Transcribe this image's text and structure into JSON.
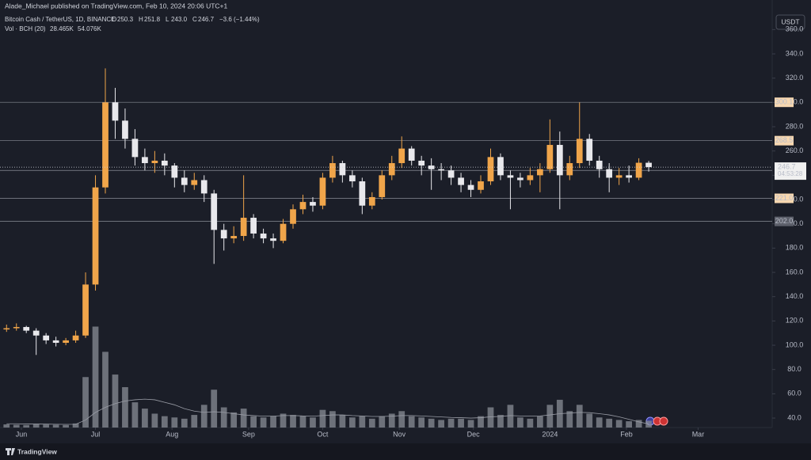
{
  "chart_data": {
    "type": "candlestick",
    "publisher": "Alade_Michael published on TradingView.com, Feb 10, 2024 20:06 UTC+1",
    "symbol": "Bitcoin Cash / TetherUS, 1D, BINANCE",
    "ohlc": [
      {
        "label": "O",
        "value": "250.3"
      },
      {
        "label": "H",
        "value": "251.8"
      },
      {
        "label": "L",
        "value": "243.0"
      },
      {
        "label": "C",
        "value": "246.7"
      }
    ],
    "change": "−3.6 (−1.44%)",
    "volume_label": "Vol · BCH (20)",
    "volume_ma_text": "28.465K",
    "volume_text": "54.076K",
    "currency": "USDT",
    "brand": "TradingView",
    "countdown": "04:53:28",
    "up_color": "#f0a54a",
    "down_color": "#e8e8ec",
    "volume_color": "#8a8d96",
    "x": [
      -6,
      -2,
      2,
      6,
      10,
      14,
      18,
      22,
      26,
      30,
      34,
      38,
      42,
      46,
      50,
      54,
      58,
      62,
      66,
      70,
      74,
      78,
      82,
      86,
      90,
      94,
      98,
      102,
      106,
      110,
      114,
      118,
      122,
      126,
      130,
      134,
      138,
      142,
      146,
      150,
      154,
      158,
      162,
      166,
      170,
      174,
      178,
      182,
      186,
      190,
      194,
      198,
      202,
      206,
      210,
      214,
      218,
      222,
      226,
      230,
      234,
      238,
      242,
      246,
      250,
      254
    ],
    "candles": [
      [
        113,
        117,
        111,
        114
      ],
      [
        114,
        118,
        112,
        115
      ],
      [
        115,
        116,
        110,
        112
      ],
      [
        112,
        114,
        92,
        108
      ],
      [
        108,
        110,
        101,
        104
      ],
      [
        104,
        107,
        99,
        102
      ],
      [
        102,
        106,
        100,
        104
      ],
      [
        104,
        112,
        102,
        108
      ],
      [
        108,
        160,
        106,
        150
      ],
      [
        150,
        240,
        145,
        230
      ],
      [
        230,
        328,
        225,
        300
      ],
      [
        300,
        312,
        270,
        285
      ],
      [
        285,
        295,
        262,
        270
      ],
      [
        270,
        278,
        248,
        255
      ],
      [
        255,
        262,
        244,
        250
      ],
      [
        250,
        260,
        242,
        252
      ],
      [
        252,
        258,
        240,
        248
      ],
      [
        248,
        250,
        230,
        238
      ],
      [
        238,
        244,
        226,
        232
      ],
      [
        232,
        242,
        228,
        236
      ],
      [
        236,
        240,
        218,
        225
      ],
      [
        225,
        228,
        167,
        195
      ],
      [
        195,
        200,
        178,
        188
      ],
      [
        188,
        198,
        184,
        190
      ],
      [
        190,
        240,
        186,
        205
      ],
      [
        205,
        208,
        188,
        192
      ],
      [
        192,
        196,
        184,
        188
      ],
      [
        188,
        192,
        180,
        186
      ],
      [
        186,
        204,
        184,
        200
      ],
      [
        200,
        216,
        196,
        212
      ],
      [
        212,
        224,
        208,
        218
      ],
      [
        218,
        222,
        210,
        215
      ],
      [
        215,
        242,
        212,
        238
      ],
      [
        238,
        256,
        234,
        250
      ],
      [
        250,
        252,
        234,
        240
      ],
      [
        240,
        244,
        230,
        235
      ],
      [
        235,
        238,
        208,
        215
      ],
      [
        215,
        226,
        212,
        222
      ],
      [
        222,
        244,
        220,
        240
      ],
      [
        240,
        256,
        236,
        250
      ],
      [
        250,
        272,
        246,
        262
      ],
      [
        262,
        264,
        248,
        252
      ],
      [
        252,
        256,
        240,
        248
      ],
      [
        248,
        254,
        228,
        245
      ],
      [
        245,
        250,
        236,
        244
      ],
      [
        244,
        248,
        232,
        238
      ],
      [
        238,
        242,
        226,
        232
      ],
      [
        232,
        236,
        222,
        228
      ],
      [
        228,
        240,
        225,
        235
      ],
      [
        235,
        262,
        232,
        255
      ],
      [
        255,
        258,
        236,
        240
      ],
      [
        240,
        244,
        212,
        238
      ],
      [
        238,
        242,
        230,
        236
      ],
      [
        236,
        246,
        232,
        240
      ],
      [
        240,
        250,
        226,
        245
      ],
      [
        245,
        286,
        242,
        265
      ],
      [
        265,
        276,
        212,
        240
      ],
      [
        240,
        256,
        236,
        250
      ],
      [
        250,
        300,
        246,
        270
      ],
      [
        270,
        274,
        248,
        252
      ],
      [
        252,
        256,
        238,
        245
      ],
      [
        245,
        250,
        226,
        238
      ],
      [
        238,
        246,
        232,
        240
      ],
      [
        240,
        248,
        234,
        238
      ],
      [
        238,
        254,
        236,
        250.3
      ],
      [
        250.3,
        251.8,
        243.0,
        246.7
      ]
    ],
    "volume": [
      25,
      22,
      20,
      28,
      24,
      22,
      20,
      32,
      400,
      800,
      600,
      420,
      320,
      200,
      150,
      110,
      90,
      80,
      70,
      100,
      180,
      300,
      160,
      120,
      150,
      90,
      80,
      90,
      110,
      100,
      90,
      80,
      140,
      130,
      100,
      80,
      90,
      70,
      90,
      110,
      130,
      90,
      80,
      70,
      60,
      70,
      70,
      60,
      90,
      160,
      100,
      180,
      80,
      70,
      90,
      180,
      220,
      130,
      180,
      110,
      80,
      70,
      60,
      50,
      60,
      54.076
    ],
    "volume_ma": [
      30,
      30,
      28,
      28,
      27,
      26,
      25,
      26,
      60,
      120,
      160,
      190,
      210,
      220,
      225,
      220,
      200,
      180,
      150,
      130,
      120,
      125,
      120,
      110,
      100,
      95,
      90,
      90,
      95,
      95,
      92,
      90,
      95,
      100,
      100,
      95,
      92,
      88,
      88,
      90,
      95,
      95,
      92,
      88,
      84,
      80,
      78,
      75,
      78,
      85,
      88,
      95,
      92,
      90,
      92,
      100,
      110,
      115,
      120,
      118,
      110,
      100,
      85,
      65,
      45,
      28.465
    ],
    "volume_ylim": [
      0,
      3200
    ],
    "xlim": [
      -8.65,
      304
    ],
    "xticks": [
      {
        "value": 0,
        "label": "Jun"
      },
      {
        "value": 30,
        "label": "Jul"
      },
      {
        "value": 61,
        "label": "Aug"
      },
      {
        "value": 92,
        "label": "Sep"
      },
      {
        "value": 122,
        "label": "Oct"
      },
      {
        "value": 153,
        "label": "Nov"
      },
      {
        "value": 183,
        "label": "Dec"
      },
      {
        "value": 214,
        "label": "2024"
      },
      {
        "value": 245,
        "label": "Feb"
      },
      {
        "value": 274,
        "label": "Mar"
      }
    ],
    "ylim": [
      32.2,
      364.8
    ],
    "yticks": [
      {
        "value": 40,
        "label": "40.0"
      },
      {
        "value": 60,
        "label": "60.0"
      },
      {
        "value": 80,
        "label": "80.0"
      },
      {
        "value": 100,
        "label": "100.0"
      },
      {
        "value": 120,
        "label": "120.0"
      },
      {
        "value": 140,
        "label": "140.0"
      },
      {
        "value": 160,
        "label": "160.0"
      },
      {
        "value": 180,
        "label": "180.0"
      },
      {
        "value": 200,
        "label": "200.0"
      },
      {
        "value": 220,
        "label": "220.0"
      },
      {
        "value": 240,
        "label": "240.0"
      },
      {
        "value": 260,
        "label": "260.0"
      },
      {
        "value": 280,
        "label": "280.0"
      },
      {
        "value": 300,
        "label": "300.0"
      },
      {
        "value": 320,
        "label": "320.0"
      },
      {
        "value": 340,
        "label": "340.0"
      },
      {
        "value": 360,
        "label": "360.0"
      }
    ],
    "levels": [
      {
        "value": 300.1,
        "label": "300.1",
        "color": "#f7d7b0"
      },
      {
        "value": 268.5,
        "label": "268.5",
        "color": "#f7d7b0"
      },
      {
        "value": 244.0,
        "label": "244.0",
        "color": "#f7d7b0"
      },
      {
        "value": 221.0,
        "label": "221.0",
        "color": "#f7d7b0"
      },
      {
        "value": 202.0,
        "label": "202.0",
        "color": "#5d606b"
      }
    ],
    "last_price": {
      "value": 246.7,
      "label": "246.7"
    }
  }
}
